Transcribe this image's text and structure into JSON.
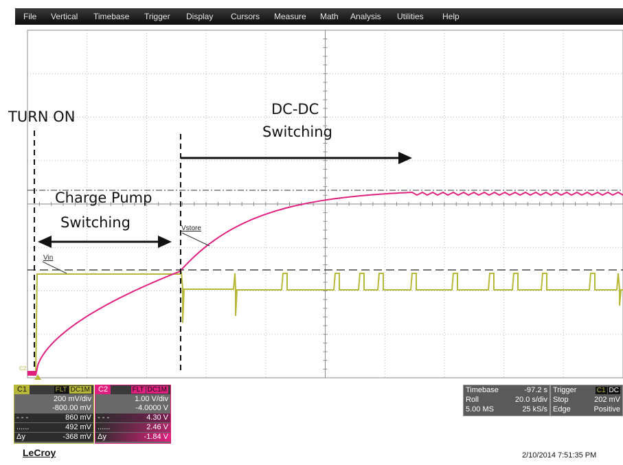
{
  "menu": [
    "File",
    "Vertical",
    "Timebase",
    "Trigger",
    "Display",
    "Cursors",
    "Measure",
    "Math",
    "Analysis",
    "Utilities",
    "Help"
  ],
  "colors": {
    "c1": "#b8b838",
    "c2": "#e0207f",
    "menubar": "#1a1a1a",
    "grid": "#9a9a9a"
  },
  "annotations": {
    "turn_on": "TURN ON",
    "dcdc_line1": "DC-DC",
    "dcdc_line2": "Switching",
    "cp_line1": "Charge Pump",
    "cp_line2": "Switching"
  },
  "trace_labels": {
    "vin": "Vin",
    "vstore": "Vstore",
    "c2_marker": "C2"
  },
  "channel1": {
    "name": "C1",
    "flt": "FLT",
    "coupling": "DC1M",
    "vdiv": "200 mV/div",
    "offset": "-800.00 mV",
    "cursor1_sym": "- - -",
    "cursor1": "860 mV",
    "cursor2_sym": "......",
    "cursor2": "492 mV",
    "delta_sym": "Δy",
    "delta": "-368 mV"
  },
  "channel2": {
    "name": "C2",
    "flt": "FLT",
    "coupling": "DC1M",
    "vdiv": "1.00 V/div",
    "offset": "-4.0000 V",
    "cursor1_sym": "- - -",
    "cursor1": "4.30 V",
    "cursor2_sym": "......",
    "cursor2": "2.46 V",
    "delta_sym": "Δy",
    "delta": "-1.84 V"
  },
  "timebase": {
    "label": "Timebase",
    "delay": "-97.2 s",
    "mode": "Roll",
    "tdiv": "20.0 s/div",
    "samples": "5.00 MS",
    "rate": "25 kS/s"
  },
  "trigger": {
    "label": "Trigger",
    "source": "C1",
    "coupling": "DC",
    "state": "Stop",
    "level": "202 mV",
    "type": "Edge",
    "slope": "Positive"
  },
  "footer": {
    "brand": "LeCroy",
    "datetime": "2/10/2014 7:51:35 PM"
  }
}
